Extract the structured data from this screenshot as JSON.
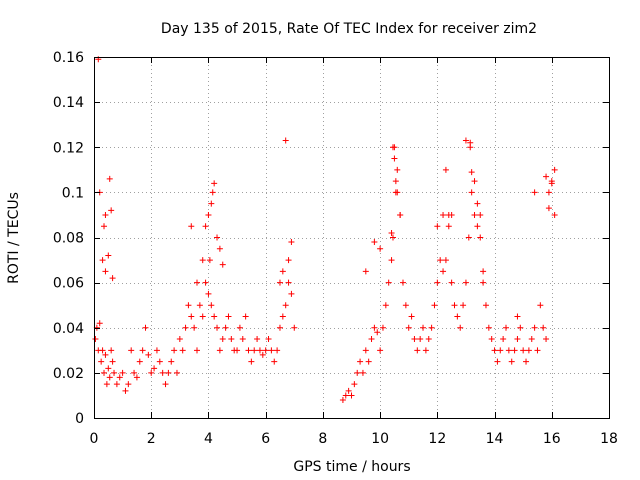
{
  "chart_data": {
    "type": "scatter",
    "title": "Day 135 of 2015, Rate Of TEC Index for receiver zim2",
    "xlabel": "GPS time / hours",
    "ylabel": "ROTI / TECUs",
    "xlim": [
      0,
      18
    ],
    "ylim": [
      0,
      0.16
    ],
    "xticks": [
      0,
      2,
      4,
      6,
      8,
      10,
      12,
      14,
      16,
      18
    ],
    "xtick_labels": [
      "0",
      "2",
      "4",
      "6",
      "8",
      "10",
      "12",
      "14",
      "16",
      "18"
    ],
    "yticks": [
      0,
      0.02,
      0.04,
      0.06,
      0.08,
      0.1,
      0.12,
      0.14,
      0.16
    ],
    "ytick_labels": [
      "0",
      "0.02",
      "0.04",
      "0.06",
      "0.08",
      "0.1",
      "0.12",
      "0.14",
      "0.16"
    ],
    "grid": true,
    "marker": "+",
    "color": "#ff0000",
    "series": [
      {
        "name": "ROTI",
        "x": [
          0.05,
          0.1,
          0.15,
          0.2,
          0.25,
          0.3,
          0.35,
          0.4,
          0.45,
          0.5,
          0.55,
          0.6,
          0.65,
          0.7,
          0.8,
          0.9,
          1.0,
          1.1,
          1.2,
          1.3,
          1.4,
          1.5,
          1.6,
          1.7,
          1.8,
          1.9,
          2.0,
          2.1,
          2.2,
          2.3,
          2.4,
          2.5,
          2.6,
          2.7,
          2.8,
          2.9,
          3.0,
          3.1,
          3.2,
          3.3,
          3.4,
          3.5,
          3.6,
          3.7,
          3.8,
          3.9,
          4.0,
          4.05,
          4.1,
          4.2,
          4.3,
          4.4,
          4.5,
          4.6,
          4.7,
          4.8,
          4.9,
          5.0,
          5.1,
          5.2,
          5.3,
          5.4,
          5.5,
          5.6,
          5.7,
          5.8,
          5.9,
          6.0,
          6.1,
          6.2,
          6.3,
          6.4,
          6.5,
          6.6,
          6.7,
          6.8,
          6.9,
          7.0,
          0.15,
          0.2,
          0.3,
          0.35,
          0.4,
          0.4,
          0.5,
          0.55,
          0.6,
          0.65,
          3.4,
          3.6,
          3.8,
          3.9,
          4.0,
          4.1,
          4.15,
          4.2,
          4.3,
          4.4,
          4.5,
          6.5,
          6.6,
          6.7,
          6.8,
          6.9,
          8.7,
          8.8,
          8.9,
          9.0,
          9.1,
          9.2,
          9.3,
          9.4,
          9.5,
          9.6,
          9.7,
          9.8,
          9.9,
          10.0,
          10.1,
          10.2,
          10.3,
          10.4,
          10.45,
          10.5,
          10.55,
          10.6,
          10.7,
          10.8,
          10.9,
          11.0,
          11.1,
          11.2,
          11.3,
          11.4,
          11.5,
          11.6,
          11.7,
          11.8,
          11.9,
          12.0,
          12.1,
          12.2,
          12.3,
          12.4,
          12.5,
          12.6,
          12.7,
          12.8,
          12.9,
          13.0,
          13.1,
          13.15,
          13.2,
          13.3,
          13.4,
          13.5,
          13.6,
          13.7,
          13.8,
          13.9,
          14.0,
          14.1,
          14.2,
          14.3,
          14.4,
          14.5,
          14.6,
          14.7,
          14.8,
          14.9,
          15.0,
          15.1,
          15.2,
          15.3,
          15.4,
          15.5,
          15.6,
          15.7,
          15.8,
          15.9,
          16.0,
          16.1,
          9.5,
          9.8,
          10.0,
          10.4,
          10.45,
          10.5,
          10.55,
          10.6,
          10.7,
          12.0,
          12.2,
          12.3,
          12.4,
          12.5,
          13.0,
          13.15,
          13.2,
          13.3,
          13.4,
          13.5,
          13.6,
          14.8,
          15.4,
          15.8,
          15.9,
          16.0,
          16.1
        ],
        "y": [
          0.035,
          0.04,
          0.03,
          0.042,
          0.025,
          0.03,
          0.02,
          0.028,
          0.015,
          0.022,
          0.018,
          0.03,
          0.025,
          0.02,
          0.015,
          0.018,
          0.02,
          0.012,
          0.015,
          0.03,
          0.02,
          0.018,
          0.025,
          0.03,
          0.04,
          0.028,
          0.02,
          0.022,
          0.03,
          0.025,
          0.02,
          0.015,
          0.02,
          0.025,
          0.03,
          0.02,
          0.035,
          0.03,
          0.04,
          0.05,
          0.045,
          0.04,
          0.03,
          0.05,
          0.045,
          0.06,
          0.055,
          0.07,
          0.05,
          0.045,
          0.04,
          0.03,
          0.035,
          0.04,
          0.045,
          0.035,
          0.03,
          0.03,
          0.04,
          0.035,
          0.045,
          0.03,
          0.025,
          0.03,
          0.035,
          0.03,
          0.028,
          0.03,
          0.035,
          0.03,
          0.025,
          0.03,
          0.04,
          0.045,
          0.05,
          0.06,
          0.055,
          0.04,
          0.159,
          0.1,
          0.07,
          0.085,
          0.065,
          0.09,
          0.072,
          0.106,
          0.092,
          0.062,
          0.085,
          0.06,
          0.07,
          0.085,
          0.09,
          0.095,
          0.1,
          0.104,
          0.08,
          0.075,
          0.068,
          0.06,
          0.065,
          0.123,
          0.07,
          0.078,
          0.008,
          0.01,
          0.012,
          0.01,
          0.015,
          0.02,
          0.025,
          0.02,
          0.03,
          0.025,
          0.035,
          0.04,
          0.038,
          0.03,
          0.04,
          0.05,
          0.06,
          0.07,
          0.08,
          0.12,
          0.105,
          0.1,
          0.09,
          0.06,
          0.05,
          0.04,
          0.045,
          0.035,
          0.03,
          0.035,
          0.04,
          0.03,
          0.035,
          0.04,
          0.05,
          0.06,
          0.07,
          0.09,
          0.11,
          0.085,
          0.06,
          0.05,
          0.045,
          0.04,
          0.05,
          0.06,
          0.08,
          0.122,
          0.1,
          0.09,
          0.085,
          0.08,
          0.065,
          0.05,
          0.04,
          0.035,
          0.03,
          0.025,
          0.03,
          0.035,
          0.04,
          0.03,
          0.025,
          0.03,
          0.035,
          0.04,
          0.03,
          0.025,
          0.03,
          0.035,
          0.04,
          0.03,
          0.05,
          0.04,
          0.035,
          0.1,
          0.105,
          0.11,
          0.065,
          0.078,
          0.075,
          0.082,
          0.12,
          0.115,
          0.1,
          0.11,
          0.09,
          0.085,
          0.065,
          0.07,
          0.09,
          0.09,
          0.123,
          0.12,
          0.109,
          0.105,
          0.095,
          0.09,
          0.06,
          0.045,
          0.1,
          0.107,
          0.093,
          0.104,
          0.09
        ]
      }
    ]
  }
}
